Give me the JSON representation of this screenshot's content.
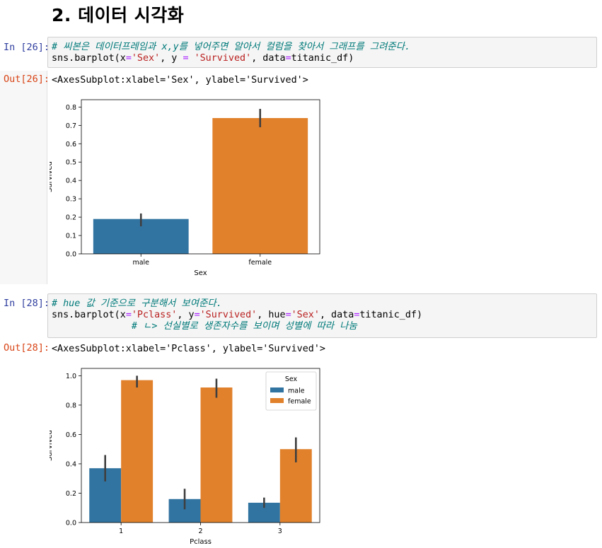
{
  "heading": "2. 데이터 시각화",
  "cells": [
    {
      "in_prompt": "In [26]:",
      "code_comment": "# 씨본은 데이터프레임과 x,y를 넣어주면 알아서 컬럼을 찾아서 그래프를 그려준다.",
      "code_line2": {
        "a": "sns.barplot(x",
        "eq1": "=",
        "s1": "'Sex'",
        "b": ", y ",
        "eq2": "=",
        "c": " ",
        "s2": "'Survived'",
        "d": ", data",
        "eq3": "=",
        "e": "titanic_df)"
      },
      "out_prompt": "Out[26]:",
      "repr": "<AxesSubplot:xlabel='Sex', ylabel='Survived'>"
    },
    {
      "in_prompt": "In [28]:",
      "code_comment": "# hue 값 기준으로 구분해서 보여준다.",
      "code_line2": {
        "a": "sns.barplot(x",
        "eq1": "=",
        "s1": "'Pclass'",
        "b": ", y",
        "eq2": "=",
        "s2": "'Survived'",
        "c": ", hue",
        "eq3": "=",
        "s3": "'Sex'",
        "d": ", data",
        "eq4": "=",
        "e": "titanic_df)"
      },
      "code_comment2": "# ㄴ> 선실별로 생존자수를 보이며 성별에 따라 나눔",
      "out_prompt": "Out[28]:",
      "repr": "<AxesSubplot:xlabel='Pclass', ylabel='Survived'>"
    }
  ],
  "colors": {
    "male": "#3274a1",
    "female": "#e1812c",
    "error": "#3f3f3f"
  },
  "chart_data": [
    {
      "type": "bar",
      "categories": [
        "male",
        "female"
      ],
      "values": [
        0.19,
        0.74
      ],
      "ci": [
        [
          0.15,
          0.22
        ],
        [
          0.69,
          0.79
        ]
      ],
      "xlabel": "Sex",
      "ylabel": "Survived",
      "ylim": [
        0,
        0.84
      ],
      "yticks": [
        "0.0",
        "0.1",
        "0.2",
        "0.3",
        "0.4",
        "0.5",
        "0.6",
        "0.7",
        "0.8"
      ],
      "ytick_values": [
        0,
        0.1,
        0.2,
        0.3,
        0.4,
        0.5,
        0.6,
        0.7,
        0.8
      ]
    },
    {
      "type": "bar",
      "categories": [
        "1",
        "2",
        "3"
      ],
      "series": [
        {
          "name": "male",
          "values": [
            0.37,
            0.16,
            0.135
          ],
          "ci": [
            [
              0.28,
              0.46
            ],
            [
              0.09,
              0.23
            ],
            [
              0.1,
              0.17
            ]
          ]
        },
        {
          "name": "female",
          "values": [
            0.97,
            0.92,
            0.5
          ],
          "ci": [
            [
              0.92,
              1.0
            ],
            [
              0.85,
              0.98
            ],
            [
              0.41,
              0.58
            ]
          ]
        }
      ],
      "legend_title": "Sex",
      "legend_position": "top-right",
      "xlabel": "Pclass",
      "ylabel": "Survived",
      "ylim": [
        0,
        1.05
      ],
      "yticks": [
        "0.0",
        "0.2",
        "0.4",
        "0.6",
        "0.8",
        "1.0"
      ],
      "ytick_values": [
        0,
        0.2,
        0.4,
        0.6,
        0.8,
        1.0
      ]
    }
  ]
}
